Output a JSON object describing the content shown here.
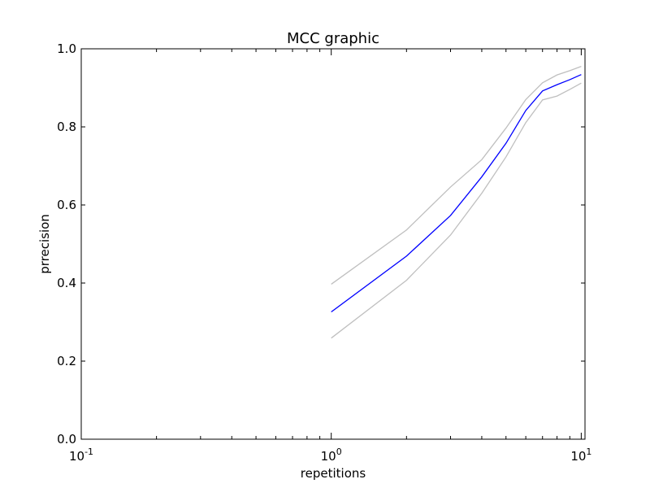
{
  "chart_data": {
    "type": "line",
    "title": "MCC graphic",
    "xlabel": "repetitions",
    "ylabel": "prrecision",
    "xscale": "log",
    "xlim": [
      0.1,
      10
    ],
    "ylim": [
      0.0,
      1.0
    ],
    "grid": false,
    "x_ticks": [
      {
        "value": 0.1,
        "base": "10",
        "exp": "-1"
      },
      {
        "value": 1,
        "base": "10",
        "exp": "0"
      },
      {
        "value": 10,
        "base": "10",
        "exp": "1"
      }
    ],
    "y_ticks": [
      {
        "value": 0.0,
        "label": "0.0"
      },
      {
        "value": 0.2,
        "label": "0.2"
      },
      {
        "value": 0.4,
        "label": "0.4"
      },
      {
        "value": 0.6,
        "label": "0.6"
      },
      {
        "value": 0.8,
        "label": "0.8"
      },
      {
        "value": 1.0,
        "label": "1.0"
      }
    ],
    "x": [
      1,
      2,
      3,
      4,
      5,
      6,
      7,
      8,
      9,
      10
    ],
    "series": [
      {
        "role": "mean",
        "color": "#0000ff",
        "values": [
          0.326,
          0.469,
          0.573,
          0.672,
          0.758,
          0.842,
          0.892,
          0.908,
          0.921,
          0.934
        ]
      },
      {
        "role": "upper",
        "color": "#bfbfbf",
        "values": [
          0.397,
          0.536,
          0.646,
          0.716,
          0.797,
          0.87,
          0.913,
          0.933,
          0.944,
          0.955
        ]
      },
      {
        "role": "lower",
        "color": "#bfbfbf",
        "values": [
          0.259,
          0.407,
          0.523,
          0.63,
          0.723,
          0.811,
          0.869,
          0.879,
          0.896,
          0.912
        ]
      }
    ]
  }
}
